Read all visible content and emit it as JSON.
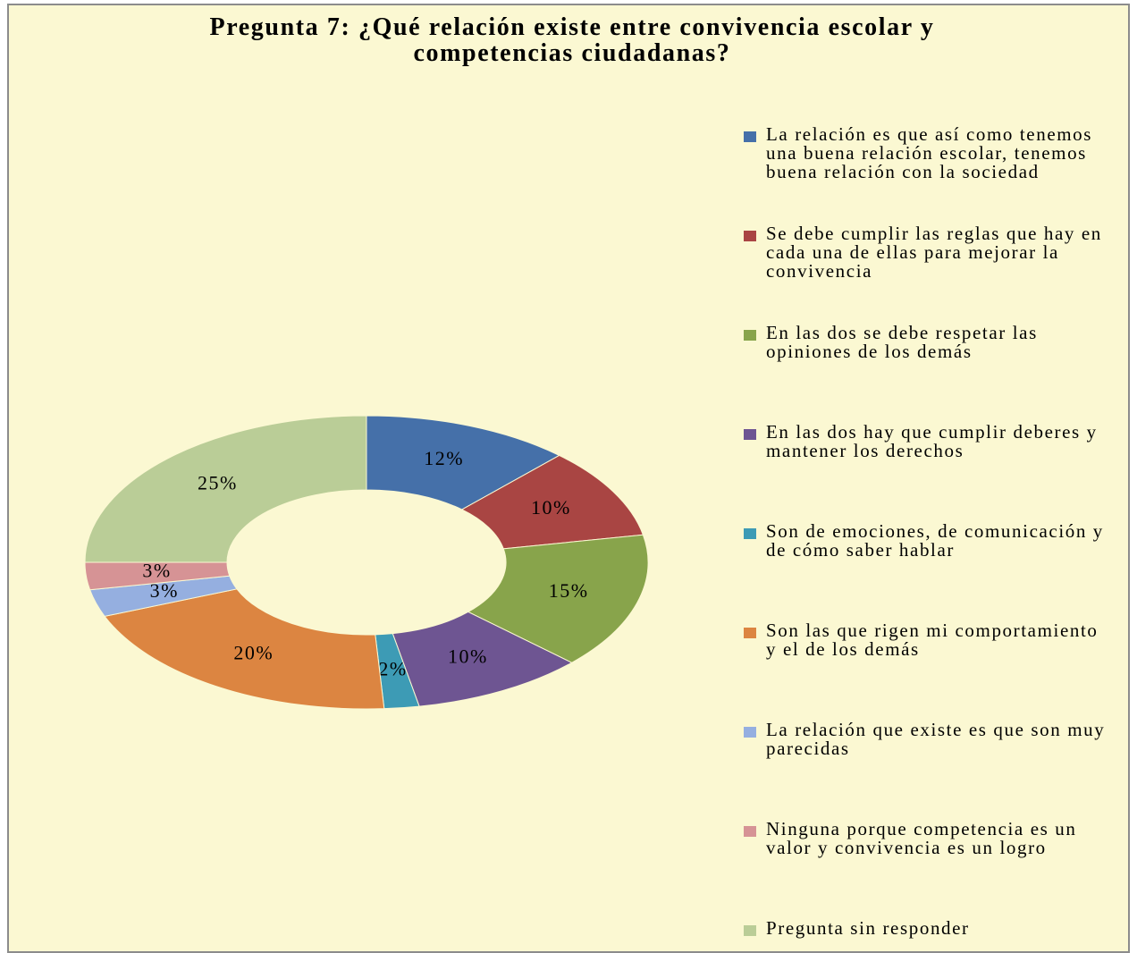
{
  "chart_data": {
    "type": "donut",
    "title": "Pregunta 7: ¿Qué relación existe entre convivencia escolar y competencias ciudadanas?",
    "categories": [
      "La relación es que así como tenemos una buena relación escolar, tenemos buena relación con la sociedad",
      "Se debe cumplir las reglas que hay en cada una de ellas para mejorar la convivencia",
      "En las dos se debe respetar las opiniones de los demás",
      "En las dos hay que cumplir deberes y mantener los derechos",
      "Son de emociones, de comunicación y de cómo saber hablar",
      "Son las que rigen mi comportamiento y el de los demás",
      "La relación que existe es que son muy parecidas",
      "Ninguna porque competencia es un valor y convivencia es un logro",
      "Pregunta sin responder"
    ],
    "values": [
      12,
      10,
      15,
      10,
      2,
      20,
      3,
      3,
      25
    ],
    "value_labels": [
      "12%",
      "10%",
      "15%",
      "10%",
      "2%",
      "20%",
      "3%",
      "3%",
      "25%"
    ],
    "colors": [
      "#4570a9",
      "#a94543",
      "#88a44b",
      "#6e5592",
      "#3d9bb5",
      "#dc8541",
      "#95afe0",
      "#d69395",
      "#bacd97"
    ],
    "legend": "right"
  }
}
